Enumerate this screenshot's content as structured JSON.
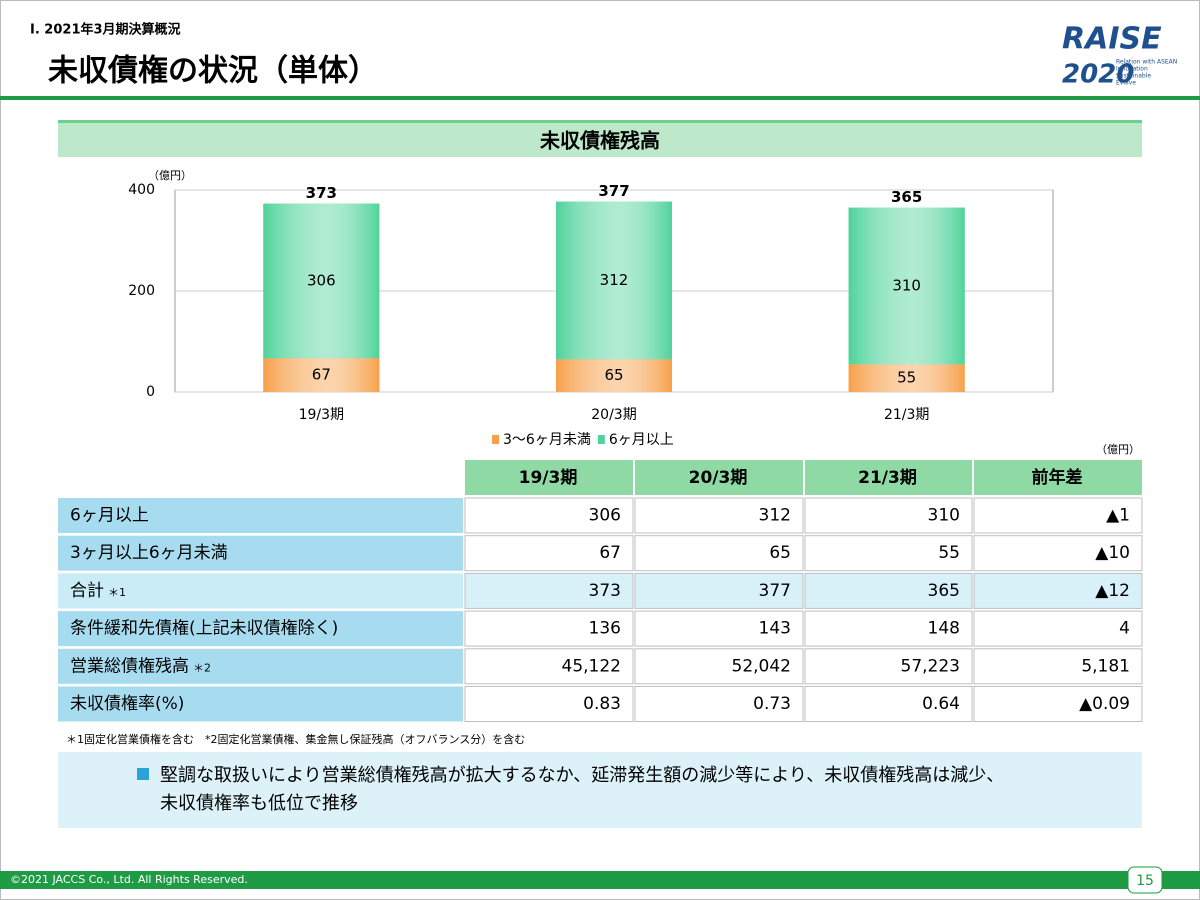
{
  "header": {
    "section": "Ⅰ. 2021年3月期決算概況",
    "title": "未収債権の状況（単体）",
    "logo": {
      "word": "RAISE",
      "year": "2020",
      "tagline": [
        "Relation with ASEAN",
        "Innovation",
        "Sustainable",
        "Evolve"
      ]
    }
  },
  "chart_data": {
    "type": "bar",
    "stacked": true,
    "title": "未収債権残高",
    "unit": "（億円）",
    "categories": [
      "19/3期",
      "20/3期",
      "21/3期"
    ],
    "series": [
      {
        "name": "3～6ヶ月未満",
        "color": "#f7a04a",
        "values": [
          67,
          65,
          55
        ]
      },
      {
        "name": "6ヶ月以上",
        "color": "#4fd39a",
        "values": [
          306,
          312,
          310
        ]
      }
    ],
    "totals": [
      373,
      377,
      365
    ],
    "ylim": [
      0,
      400
    ],
    "yticks": [
      0,
      200,
      400
    ],
    "grid": true,
    "legend": "bottom"
  },
  "table": {
    "unit": "（億円）",
    "header": [
      "19/3期",
      "20/3期",
      "21/3期",
      "前年差"
    ],
    "rows": [
      {
        "label": "6ヶ月以上",
        "cells": [
          "306",
          "312",
          "310",
          "▲1"
        ]
      },
      {
        "label": "3ヶ月以上6ヶ月未満",
        "cells": [
          "67",
          "65",
          "55",
          "▲10"
        ]
      },
      {
        "label": "合計",
        "note": "＊1",
        "cells": [
          "373",
          "377",
          "365",
          "▲12"
        ]
      },
      {
        "label": "条件緩和先債権(上記未収債権除く)",
        "cells": [
          "136",
          "143",
          "148",
          "4"
        ]
      },
      {
        "label": "営業総債権残高",
        "note": "＊2",
        "cells": [
          "45,122",
          "52,042",
          "57,223",
          "5,181"
        ]
      },
      {
        "label": "未収債権率(%)",
        "cells": [
          "0.83",
          "0.73",
          "0.64",
          "▲0.09"
        ]
      }
    ]
  },
  "footnote": "＊1固定化営業債権を含む　*2固定化営業債権、集金無し保証残高（オフバランス分）を含む",
  "bullet": [
    "堅調な取扱いにより営業総債権残高が拡大するなか、延滞発生額の減少等により、未収債権残高は減少、",
    "未収債権率も低位で推移"
  ],
  "footer": {
    "copyright": "©2021 JACCS Co., Ltd. All Rights Reserved.",
    "page": "15"
  }
}
